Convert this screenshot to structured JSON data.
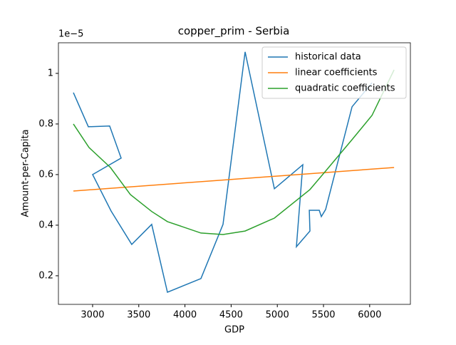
{
  "chart_data": {
    "type": "line",
    "title": "copper_prim - Serbia",
    "xlabel": "GDP",
    "ylabel": "Amount-per-Capita",
    "offset_label": "1e−5",
    "xlim": [
      2630,
      6441
    ],
    "ylim": [
      0.087,
      1.121
    ],
    "xticks": [
      3000,
      3500,
      4000,
      4500,
      5000,
      5500,
      6000
    ],
    "yticks": [
      0.2,
      0.4,
      0.6,
      0.8,
      1.0
    ],
    "legend": "upper right",
    "series": [
      {
        "name": "historical data",
        "color": "#1f77b4",
        "x": [
          2792,
          2954,
          3185,
          3309,
          3000,
          3200,
          3424,
          3640,
          3810,
          4173,
          4412,
          4651,
          4968,
          5276,
          5207,
          5353,
          5346,
          5454,
          5477,
          5523,
          5809,
          6025
        ],
        "values": [
          0.924,
          0.789,
          0.792,
          0.665,
          0.6,
          0.456,
          0.324,
          0.403,
          0.135,
          0.189,
          0.403,
          1.085,
          0.544,
          0.639,
          0.315,
          0.377,
          0.459,
          0.459,
          0.434,
          0.462,
          0.868,
          0.963
        ]
      },
      {
        "name": "linear coefficients",
        "color": "#ff7f0e",
        "x": [
          2792,
          6264
        ],
        "values": [
          0.535,
          0.628
        ]
      },
      {
        "name": "quadratic coefficients",
        "color": "#2ca02c",
        "x": [
          2792,
          2961,
          3193,
          3409,
          3640,
          3810,
          4173,
          4412,
          4651,
          4968,
          5353,
          5523,
          5809,
          6025,
          6264
        ],
        "values": [
          0.8,
          0.707,
          0.628,
          0.521,
          0.454,
          0.414,
          0.369,
          0.363,
          0.377,
          0.428,
          0.541,
          0.614,
          0.738,
          0.834,
          1.014
        ]
      }
    ]
  }
}
